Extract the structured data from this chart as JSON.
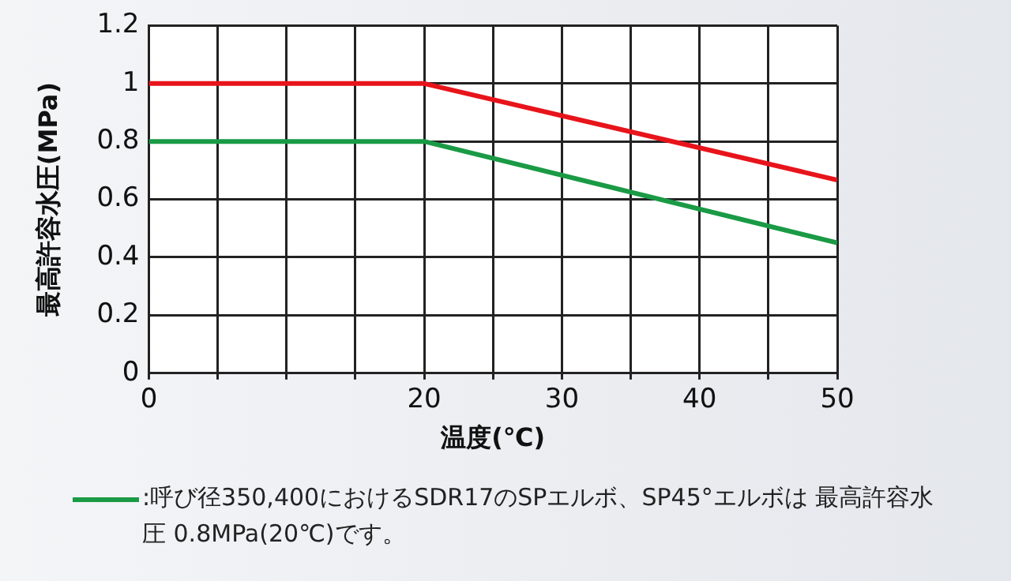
{
  "chart_data": {
    "type": "line",
    "xlabel": "温度(℃)",
    "ylabel": "最高許容水圧(MPa)",
    "xlim": [
      0,
      50
    ],
    "xticks": [
      0,
      {
        "value": 5,
        "label": null
      },
      {
        "value": 10,
        "label": null
      },
      {
        "value": 15,
        "label": null
      },
      20,
      {
        "value": 25,
        "label": null
      },
      30,
      {
        "value": 35,
        "label": null
      },
      40,
      {
        "value": 45,
        "label": null
      },
      50
    ],
    "ylim": [
      0,
      1.2
    ],
    "yticks": [
      0,
      0.2,
      0.4,
      0.6,
      0.8,
      1,
      1.2
    ],
    "grid": true,
    "legend": "bottom",
    "marker": "none",
    "line_style": "solid",
    "series": [
      {
        "color": "#e8141b",
        "x": [
          0,
          20,
          50
        ],
        "values": [
          1,
          1,
          0.667
        ]
      },
      {
        "name": ":呼び径350,400におけるSDR17のSPエルボ、SP45°エルボは 最高許容水圧 0.8MPa(20℃)です。",
        "color": "#1a9a45",
        "x": [
          0,
          20,
          50
        ],
        "values": [
          0.8,
          0.8,
          0.45
        ]
      }
    ]
  }
}
